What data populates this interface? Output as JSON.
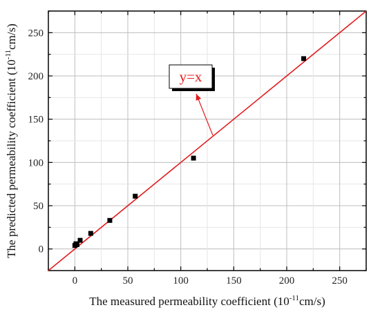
{
  "chart_data": {
    "type": "scatter",
    "x": [
      0,
      1,
      2,
      5,
      15,
      33,
      57,
      112,
      216
    ],
    "y": [
      4,
      6,
      5,
      10,
      18,
      33,
      61,
      105,
      220
    ],
    "xlabel": {
      "main": "The measured permeability coefficient (10",
      "sup": "-11",
      "unit": "cm/s)"
    },
    "ylabel": {
      "main": "The predicted permeability coefficient (10",
      "sup": "-11",
      "unit": "cm/s)"
    },
    "xlim": [
      -25,
      275
    ],
    "ylim": [
      -25,
      275
    ],
    "xticks": [
      "0",
      "50",
      "100",
      "150",
      "200",
      "250"
    ],
    "yticks": [
      "0",
      "50",
      "100",
      "150",
      "200",
      "250"
    ],
    "reference_line": {
      "label": "y=x",
      "color": "#e31a1c"
    },
    "marker_color": "#000000",
    "grid": true,
    "legend": "none"
  }
}
